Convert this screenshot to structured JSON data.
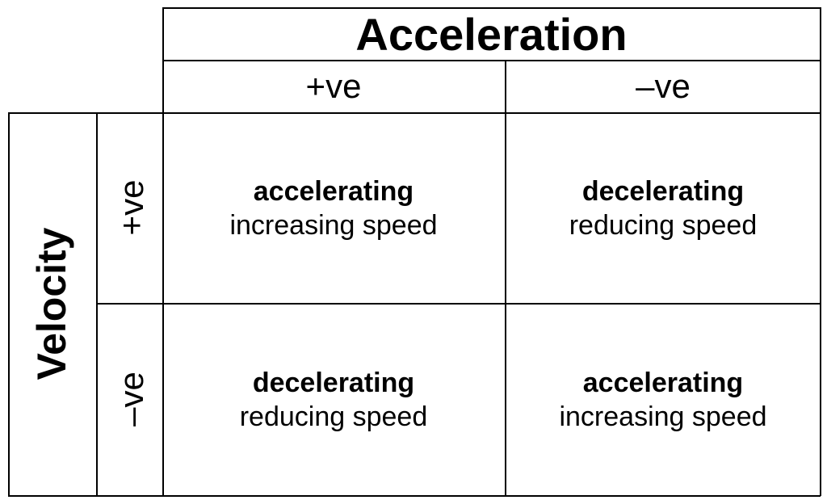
{
  "acceleration": {
    "title": "Acceleration",
    "positive": "+ve",
    "negative": "–ve"
  },
  "velocity": {
    "title": "Velocity",
    "positive": "+ve",
    "negative": "–ve"
  },
  "cells": {
    "pos_pos": {
      "state": "accelerating",
      "description": "increasing speed"
    },
    "pos_neg": {
      "state": "decelerating",
      "description": "reducing speed"
    },
    "neg_pos": {
      "state": "decelerating",
      "description": "reducing speed"
    },
    "neg_neg": {
      "state": "accelerating",
      "description": "increasing speed"
    }
  }
}
